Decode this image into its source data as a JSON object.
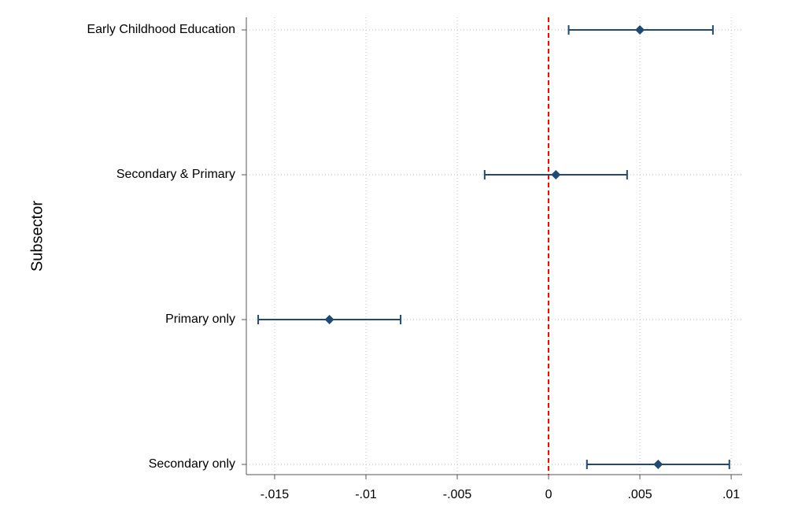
{
  "chart_data": {
    "type": "coefplot",
    "y_axis_label": "Subsector",
    "categories": [
      "Early Childhood Education",
      "Secondary & Primary",
      "Primary only",
      "Secondary only"
    ],
    "values": [
      0.005,
      0.0004,
      -0.012,
      0.006
    ],
    "ci_low": [
      0.0011,
      -0.0035,
      -0.0159,
      0.0021
    ],
    "ci_high": [
      0.009,
      0.0043,
      -0.0081,
      0.0099
    ],
    "color": "#1f4a73",
    "xlim": [
      -0.01655,
      0.0106
    ],
    "xticks": [
      {
        "value": -0.015,
        "label": "-.015"
      },
      {
        "value": -0.01,
        "label": "-.01"
      },
      {
        "value": -0.005,
        "label": "-.005"
      },
      0,
      {
        "value": 0.005,
        "label": ".005"
      },
      {
        "value": 0.01,
        "label": ".01"
      }
    ],
    "grid": true,
    "reference_line": {
      "value": 0,
      "color": "#ff0000"
    }
  }
}
